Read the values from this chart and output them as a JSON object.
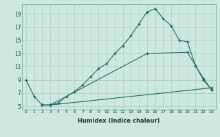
{
  "xlabel": "Humidex (Indice chaleur)",
  "bg_color": "#cce8e0",
  "grid_color": "#aaccbf",
  "line_color": "#1a6b5a",
  "xlim": [
    -0.5,
    23.5
  ],
  "ylim": [
    4.5,
    20.5
  ],
  "xticks": [
    0,
    1,
    2,
    3,
    4,
    5,
    6,
    7,
    8,
    9,
    10,
    11,
    12,
    13,
    14,
    15,
    16,
    17,
    18,
    19,
    20,
    21,
    22,
    23
  ],
  "yticks": [
    5,
    7,
    9,
    11,
    13,
    15,
    17,
    19
  ],
  "line1_x": [
    0,
    1,
    2,
    3,
    4,
    5,
    6,
    7,
    8,
    9,
    10,
    11,
    12,
    13,
    14,
    15,
    16,
    17,
    18,
    19,
    20,
    21,
    22,
    23
  ],
  "line1_y": [
    9.0,
    6.5,
    5.2,
    5.2,
    5.5,
    6.5,
    7.2,
    8.2,
    9.5,
    10.7,
    11.5,
    13.0,
    14.2,
    15.7,
    17.5,
    19.3,
    19.8,
    18.3,
    17.2,
    15.0,
    14.8,
    11.2,
    9.0,
    7.5
  ],
  "line2_x": [
    2,
    3,
    15,
    20,
    21,
    22,
    23
  ],
  "line2_y": [
    5.2,
    5.2,
    13.0,
    13.2,
    11.2,
    9.2,
    7.5
  ],
  "line3_x": [
    2,
    3,
    23
  ],
  "line3_y": [
    5.2,
    5.2,
    7.8
  ]
}
